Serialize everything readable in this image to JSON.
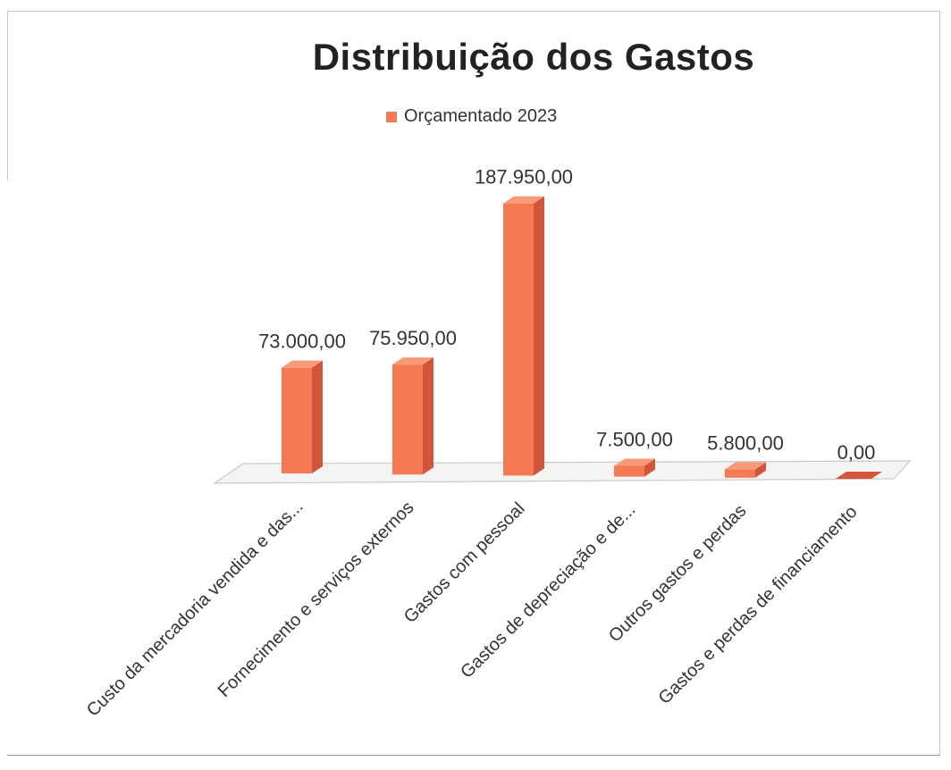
{
  "chart_data": {
    "type": "bar",
    "title": "Distribuição dos Gastos",
    "legend": {
      "entries": [
        "Orçamentado 2023"
      ],
      "placement": "top"
    },
    "categories": [
      "Custo da mercadoria vendida e das...",
      "Fornecimento e serviços externos",
      "Gastos com pessoal",
      "Gastos de depreciação e de...",
      "Outros gastos e perdas",
      "Gastos e perdas de financiamento"
    ],
    "series": [
      {
        "name": "Orçamentado 2023",
        "values": [
          73000,
          75950,
          187950,
          7500,
          5800,
          0
        ],
        "labels": [
          "73.000,00",
          "75.950,00",
          "187.950,00",
          "7.500,00",
          "5.800,00",
          "0,00"
        ],
        "color": "#f47a54"
      }
    ],
    "ylim": [
      0,
      190000
    ],
    "grid": false,
    "style": "3d-column"
  }
}
